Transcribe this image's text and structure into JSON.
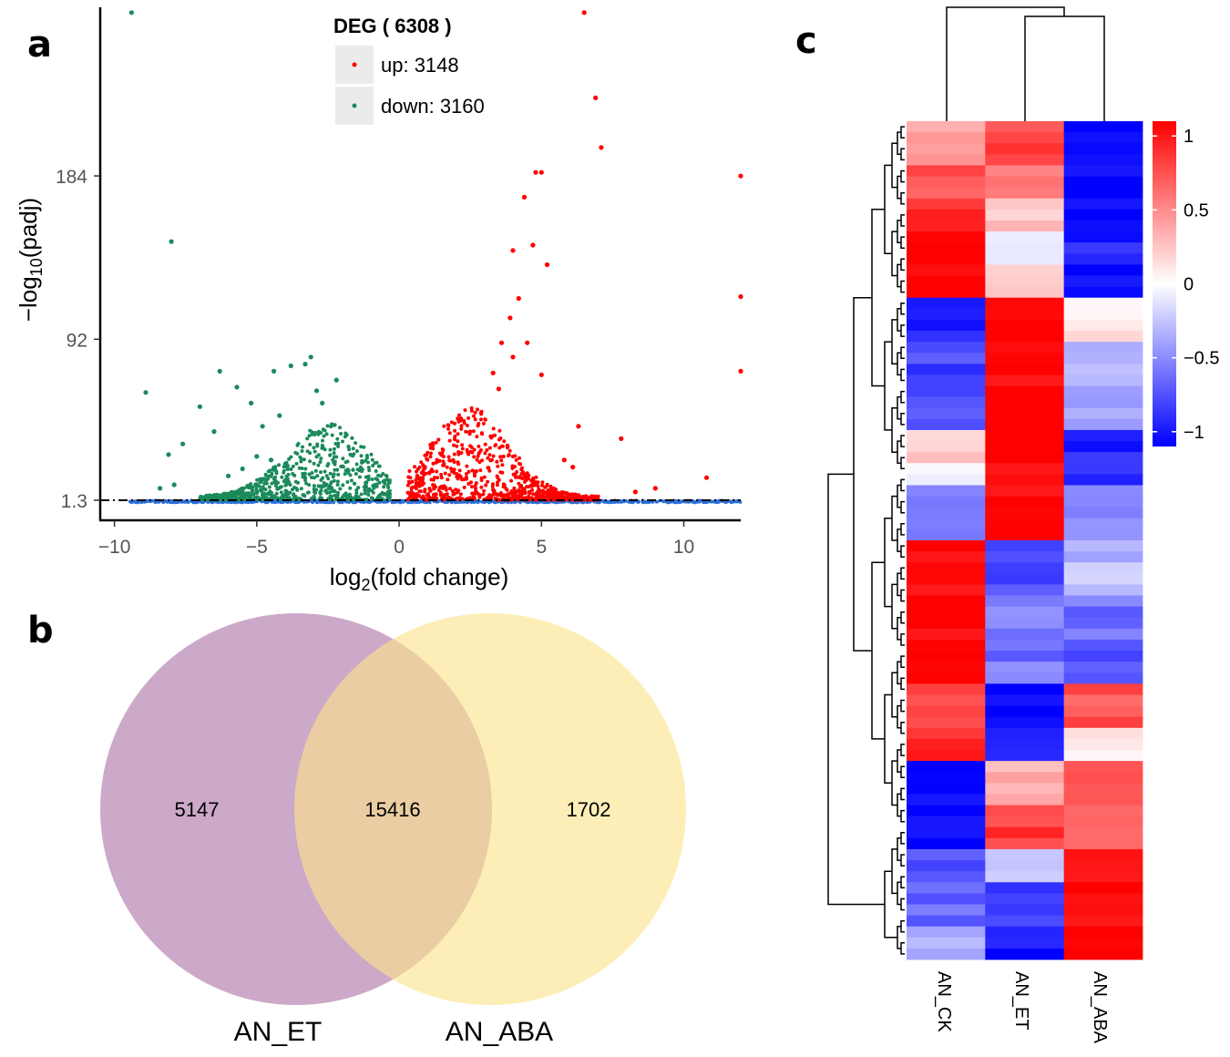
{
  "figure": {
    "panel_letters": [
      "a",
      "b",
      "c"
    ]
  },
  "chart_data": [
    {
      "panel": "a",
      "type": "scatter",
      "title": "",
      "xlabel_main": "log",
      "xlabel_sub": "2",
      "xlabel_rest": "(fold change)",
      "ylabel_main": "−log",
      "ylabel_sub": "10",
      "ylabel_rest": "(padj)",
      "xlim": [
        -10.5,
        12
      ],
      "ylim": [
        -10,
        279
      ],
      "x_ticks": [
        -10,
        -5,
        0,
        5,
        10
      ],
      "x_tick_labels": [
        "−10",
        "−5",
        "0",
        "5",
        "10"
      ],
      "y_ticks": [
        1.3,
        92,
        184
      ],
      "y_tick_labels": [
        "1.3",
        "92",
        "184"
      ],
      "threshold_line": 1.3,
      "colors": {
        "up": "#ff0000",
        "down": "#1b8a5a",
        "ns": "#2a6fdb"
      },
      "legend": {
        "title": "DEG ( 6308 )",
        "entries": [
          {
            "label": "up: 3148",
            "color": "#ff0000"
          },
          {
            "label": "down: 3160",
            "color": "#1b8a5a"
          }
        ]
      },
      "series": [
        {
          "name": "down",
          "color": "#1b8a5a",
          "points": [
            [
              -9.4,
              276
            ],
            [
              -8.0,
              147
            ],
            [
              -8.9,
              62
            ],
            [
              -8.1,
              27
            ],
            [
              -7.6,
              33
            ],
            [
              -6.3,
              74
            ],
            [
              -7.0,
              54
            ],
            [
              -6.5,
              40
            ],
            [
              -5.7,
              65
            ],
            [
              -5.2,
              56
            ],
            [
              -4.8,
              43
            ],
            [
              -4.4,
              74
            ],
            [
              -4.2,
              49
            ],
            [
              -3.8,
              77
            ],
            [
              -3.3,
              78
            ],
            [
              -3.1,
              82
            ],
            [
              -2.7,
              56
            ],
            [
              -2.9,
              63
            ],
            [
              -4.5,
              24
            ],
            [
              -5.0,
              26
            ],
            [
              -5.5,
              19
            ],
            [
              -6.0,
              15
            ],
            [
              -8.4,
              8
            ],
            [
              -7.9,
              10
            ],
            [
              -2.2,
              69
            ]
          ]
        },
        {
          "name": "up",
          "color": "#ff0000",
          "points": [
            [
              6.5,
              276
            ],
            [
              6.9,
              228
            ],
            [
              7.1,
              200
            ],
            [
              5.0,
              186
            ],
            [
              4.8,
              186
            ],
            [
              12,
              184
            ],
            [
              4.4,
              172
            ],
            [
              4.0,
              142
            ],
            [
              4.7,
              145
            ],
            [
              5.2,
              134
            ],
            [
              4.2,
              115
            ],
            [
              3.9,
              104
            ],
            [
              4.5,
              90
            ],
            [
              3.6,
              90
            ],
            [
              4.0,
              82
            ],
            [
              3.3,
              73
            ],
            [
              5.0,
              72
            ],
            [
              3.5,
              64
            ],
            [
              6.3,
              43
            ],
            [
              7.8,
              36
            ],
            [
              10.8,
              14
            ],
            [
              12,
              116
            ],
            [
              12,
              74
            ],
            [
              9.0,
              8
            ],
            [
              8.3,
              6
            ],
            [
              5.8,
              24
            ],
            [
              6.1,
              20
            ]
          ]
        }
      ],
      "clouds": [
        {
          "name": "down",
          "center": -2.5,
          "sigma": 1.45,
          "height": 41,
          "count": 1000
        },
        {
          "name": "up",
          "center": 2.5,
          "sigma": 1.35,
          "height": 50,
          "count": 1100
        }
      ]
    },
    {
      "panel": "b",
      "type": "venn",
      "sets": [
        {
          "name": "AN_ET",
          "only": "5147",
          "color": "#b47fb0"
        },
        {
          "name": "AN_ABA",
          "only": "1702",
          "color": "#fbe48a"
        }
      ],
      "intersection": "15416"
    },
    {
      "panel": "c",
      "type": "heatmap",
      "columns": [
        "AN_CK",
        "AN_ET",
        "AN_ABA"
      ],
      "colorbar": {
        "min": -1.1,
        "max": 1.1,
        "ticks": [
          1,
          0.5,
          0,
          -0.5,
          -1
        ],
        "tick_labels": [
          "1",
          "0.5",
          "0",
          "−0.5",
          "−1"
        ],
        "low_color": "#0000ff",
        "mid_color": "#ffffff",
        "high_color": "#ff0000"
      },
      "row_blocks": [
        {
          "rows": 4,
          "values": [
            0.4,
            0.8,
            -1.1
          ]
        },
        {
          "rows": 3,
          "values": [
            0.7,
            0.6,
            -1.1
          ]
        },
        {
          "rows": 3,
          "values": [
            0.9,
            0.3,
            -1.1
          ]
        },
        {
          "rows": 3,
          "values": [
            1.1,
            0.0,
            -0.95
          ]
        },
        {
          "rows": 3,
          "values": [
            1.1,
            0.2,
            -1.05
          ]
        },
        {
          "rows": 4,
          "values": [
            -0.95,
            1.1,
            0.1
          ]
        },
        {
          "rows": 5,
          "values": [
            -0.8,
            1.1,
            -0.35
          ]
        },
        {
          "rows": 3,
          "values": [
            -0.65,
            1.1,
            -0.45
          ]
        },
        {
          "rows": 3,
          "values": [
            0.2,
            1.1,
            -0.95
          ]
        },
        {
          "rows": 2,
          "values": [
            0.0,
            1.1,
            -0.85
          ]
        },
        {
          "rows": 5,
          "values": [
            -0.55,
            1.1,
            -0.55
          ]
        },
        {
          "rows": 5,
          "values": [
            1.1,
            -0.8,
            -0.3
          ]
        },
        {
          "rows": 4,
          "values": [
            1.1,
            -0.55,
            -0.6
          ]
        },
        {
          "rows": 4,
          "values": [
            1.1,
            -0.6,
            -0.8
          ]
        },
        {
          "rows": 4,
          "values": [
            0.75,
            -1.1,
            0.75
          ]
        },
        {
          "rows": 3,
          "values": [
            0.95,
            -0.95,
            0.05
          ]
        },
        {
          "rows": 4,
          "values": [
            -1.1,
            0.35,
            0.85
          ]
        },
        {
          "rows": 4,
          "values": [
            -1.1,
            0.85,
            0.55
          ]
        },
        {
          "rows": 3,
          "values": [
            -0.75,
            -0.2,
            1.1
          ]
        },
        {
          "rows": 4,
          "values": [
            -0.65,
            -0.85,
            1.1
          ]
        },
        {
          "rows": 3,
          "values": [
            -0.3,
            -1.05,
            1.1
          ]
        }
      ]
    }
  ]
}
